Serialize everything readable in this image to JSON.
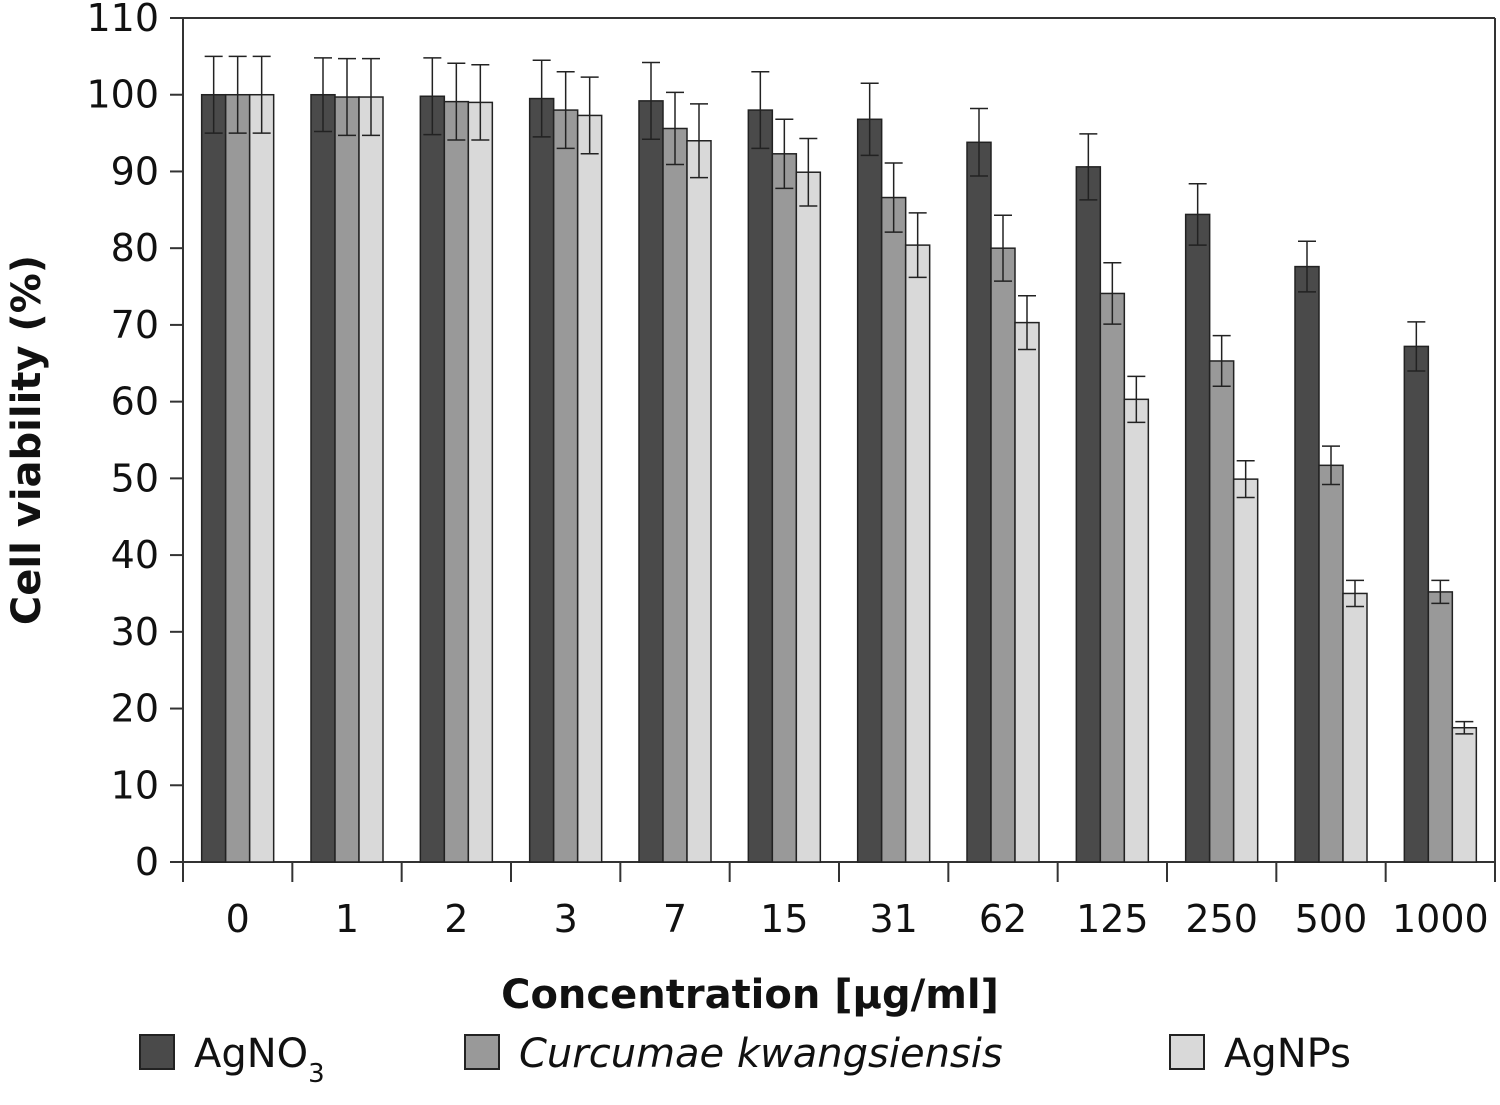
{
  "chart_data": {
    "type": "bar",
    "xlabel": "Concentration [µg/ml]",
    "ylabel": "Cell viability (%)",
    "ylim": [
      0,
      110
    ],
    "yticks": [
      0,
      10,
      20,
      30,
      40,
      50,
      60,
      70,
      80,
      90,
      100,
      110
    ],
    "grid": false,
    "legend_position": "bottom",
    "categories": [
      "0",
      "1",
      "2",
      "3",
      "7",
      "15",
      "31",
      "62",
      "125",
      "250",
      "500",
      "1000"
    ],
    "series": [
      {
        "name": "AgNO3",
        "legend_base": "AgNO",
        "legend_sub": "3",
        "legend_italic": false,
        "color": "#4a4a4a",
        "values": [
          100,
          100,
          99.8,
          99.5,
          99.2,
          98,
          96.8,
          93.8,
          90.6,
          84.4,
          77.6,
          67.2
        ],
        "errors": [
          5,
          4.8,
          5,
          5,
          5,
          5,
          4.7,
          4.4,
          4.3,
          4,
          3.3,
          3.2
        ]
      },
      {
        "name": "Curcumae kwangsiensis",
        "legend_base": "Curcumae kwangsiensis",
        "legend_sub": "",
        "legend_italic": true,
        "color": "#999999",
        "values": [
          100,
          99.7,
          99.1,
          98,
          95.6,
          92.3,
          86.6,
          80,
          74.1,
          65.3,
          51.7,
          35.2
        ],
        "errors": [
          5,
          5,
          5,
          5,
          4.7,
          4.5,
          4.5,
          4.3,
          4,
          3.3,
          2.5,
          1.5
        ]
      },
      {
        "name": "AgNPs",
        "legend_base": "AgNPs",
        "legend_sub": "",
        "legend_italic": false,
        "color": "#d9d9d9",
        "values": [
          100,
          99.7,
          99,
          97.3,
          94,
          89.9,
          80.4,
          70.3,
          60.3,
          49.9,
          35,
          17.5
        ],
        "errors": [
          5,
          5,
          4.9,
          5,
          4.8,
          4.4,
          4.2,
          3.5,
          3,
          2.4,
          1.7,
          0.8
        ]
      }
    ]
  }
}
